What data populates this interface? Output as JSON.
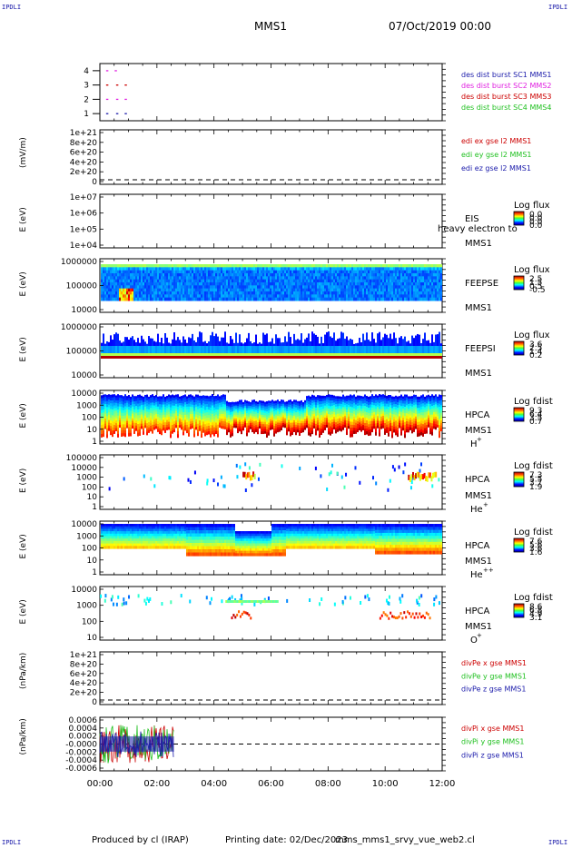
{
  "corner_label": "IPDLI",
  "header": {
    "spacecraft": "MMS1",
    "date": "07/Oct/2019 00:00"
  },
  "footer": {
    "produced_by": "Produced by cl (IRAP)",
    "printing_date": "Printing date: 02/Dec/2023",
    "script": "mms_mms1_srvy_vue_web2.cl"
  },
  "time_axis": {
    "ticks": [
      "00:00",
      "02:00",
      "04:00",
      "06:00",
      "08:00",
      "10:00",
      "12:00"
    ],
    "range_hours": [
      0,
      12
    ]
  },
  "colors": {
    "blue": "#1a1aaa",
    "magenta": "#e020e0",
    "red": "#cc0000",
    "green": "#20c020"
  },
  "chart_data": [
    {
      "id": "burst",
      "type": "scatter",
      "yticks": [
        "4",
        "3",
        "2",
        "1"
      ],
      "ylim": [
        0.5,
        4.5
      ],
      "legend": [
        {
          "label": "des dist burst SC1 MMS1",
          "color": "#1a1aaa"
        },
        {
          "label": "des dist burst SC2 MMS2",
          "color": "#e020e0"
        },
        {
          "label": "des dist burst SC3 MMS3",
          "color": "#cc0000"
        },
        {
          "label": "des dist burst SC4 MMS4",
          "color": "#20c020"
        }
      ],
      "series": [
        {
          "y": 4,
          "x": [
            0.25,
            0.55
          ],
          "color": "#e020e0"
        },
        {
          "y": 3,
          "x": [
            0.25,
            0.6,
            0.9
          ],
          "color": "#cc0000"
        },
        {
          "y": 2,
          "x": [
            0.25,
            0.6,
            0.9
          ],
          "color": "#e020e0"
        },
        {
          "y": 1,
          "x": [
            0.25,
            0.6,
            0.9
          ],
          "color": "#1a1aaa"
        }
      ]
    },
    {
      "id": "edi",
      "type": "line",
      "ylabel": "(mV/m)",
      "yticks": [
        "1e+21",
        "8e+20",
        "6e+20",
        "4e+20",
        "2e+20",
        "0"
      ],
      "ylim": [
        0,
        1e+21
      ],
      "zero_line": true,
      "legend": [
        {
          "label": "edi ex gse l2 MMS1",
          "color": "#cc0000"
        },
        {
          "label": "edi ey gse l2 MMS1",
          "color": "#20c020"
        },
        {
          "label": "edi ez gse l2 MMS1",
          "color": "#1a1aaa"
        }
      ]
    },
    {
      "id": "eis",
      "type": "heatmap",
      "ylabel": "E (eV)",
      "yticks": [
        "1e+07",
        "1e+06",
        "1e+05",
        "1e+04"
      ],
      "instrument": [
        "EIS",
        "MMS1"
      ],
      "overlay_text": "heavy electron to",
      "colorbar": {
        "title": "Log flux",
        "ticks": [
          "0.0",
          "0.0",
          "0.0",
          "0.0"
        ]
      }
    },
    {
      "id": "feepse",
      "type": "heatmap",
      "ylabel": "E (eV)",
      "yticks": [
        "1000000",
        "100000",
        "10000"
      ],
      "instrument": [
        "FEEPSE",
        "MMS1"
      ],
      "colorbar": {
        "title": "Log flux",
        "ticks": [
          "2.5",
          "1.5",
          "0.5",
          "-0.5"
        ]
      }
    },
    {
      "id": "feepsi",
      "type": "heatmap",
      "ylabel": "E (eV)",
      "yticks": [
        "1000000",
        "100000",
        "10000"
      ],
      "instrument": [
        "FEEPSI",
        "MMS1"
      ],
      "colorbar": {
        "title": "Log flux",
        "ticks": [
          "3.6",
          "2.5",
          "1.4",
          "0.2"
        ]
      }
    },
    {
      "id": "hpca_h",
      "type": "heatmap",
      "ylabel": "E (eV)",
      "yticks": [
        "10000",
        "1000",
        "100",
        "10",
        "1"
      ],
      "instrument": [
        "HPCA",
        "MMS1"
      ],
      "species": "H",
      "charge": "+",
      "colorbar": {
        "title": "Log fdist",
        "ticks": [
          "9.3",
          "6.4",
          "3.5",
          "0.7"
        ]
      }
    },
    {
      "id": "hpca_he",
      "type": "heatmap",
      "ylabel": "E (eV)",
      "yticks": [
        "100000",
        "10000",
        "1000",
        "100",
        "10",
        "1"
      ],
      "instrument": [
        "HPCA",
        "MMS1"
      ],
      "species": "He",
      "charge": "+",
      "colorbar": {
        "title": "Log fdist",
        "ticks": [
          "7.3",
          "5.5",
          "3.7",
          "1.9"
        ]
      }
    },
    {
      "id": "hpca_hepp",
      "type": "heatmap",
      "ylabel": "E (eV)",
      "yticks": [
        "10000",
        "1000",
        "100",
        "10",
        "1"
      ],
      "instrument": [
        "HPCA",
        "MMS1"
      ],
      "species": "He",
      "charge": "++",
      "colorbar": {
        "title": "Log fdist",
        "ticks": [
          "7.6",
          "5.6",
          "3.6",
          "1.6"
        ]
      }
    },
    {
      "id": "hpca_o",
      "type": "heatmap",
      "ylabel": "E (eV)",
      "yticks": [
        "10000",
        "1000",
        "100",
        "10"
      ],
      "instrument": [
        "HPCA",
        "MMS1"
      ],
      "species": "O",
      "charge": "+",
      "colorbar": {
        "title": "Log fdist",
        "ticks": [
          "8.6",
          "6.8",
          "4.9",
          "3.1"
        ]
      }
    },
    {
      "id": "divpe",
      "type": "line",
      "ylabel": "(nPa/km)",
      "yticks": [
        "1e+21",
        "8e+20",
        "6e+20",
        "4e+20",
        "2e+20",
        "0"
      ],
      "ylim": [
        0,
        1e+21
      ],
      "zero_line": true,
      "legend": [
        {
          "label": "divPe x gse MMS1",
          "color": "#cc0000"
        },
        {
          "label": "divPe y gse MMS1",
          "color": "#20c020"
        },
        {
          "label": "divPe z gse MMS1",
          "color": "#1a1aaa"
        }
      ]
    },
    {
      "id": "divpi",
      "type": "line",
      "ylabel": "(nPa/km)",
      "yticks": [
        "0.0006",
        "0.0004",
        "0.0002",
        "-0.0000",
        "-0.0002",
        "-0.0004",
        "-0.0006"
      ],
      "ylim": [
        -0.0007,
        0.0007
      ],
      "zero_line": true,
      "data_xrange": [
        0,
        2.6
      ],
      "legend": [
        {
          "label": "divPi x gse MMS1",
          "color": "#cc0000"
        },
        {
          "label": "divPi y gse MMS1",
          "color": "#20c020"
        },
        {
          "label": "divPi z gse MMS1",
          "color": "#1a1aaa"
        }
      ]
    }
  ]
}
